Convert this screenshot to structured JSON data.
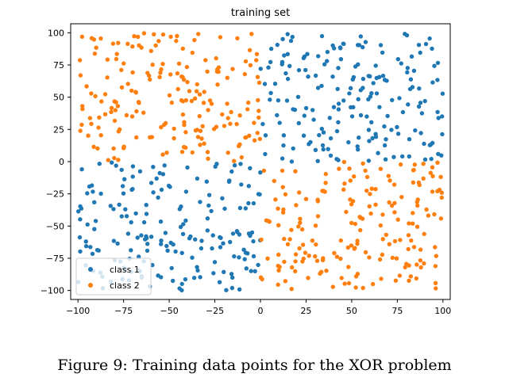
{
  "chart_data": {
    "type": "scatter",
    "title": "training set",
    "xlabel": "",
    "ylabel": "",
    "xlim": [
      -104,
      104
    ],
    "ylim": [
      -107,
      107
    ],
    "xticks": [
      -100,
      -75,
      -50,
      -25,
      0,
      25,
      50,
      75,
      100
    ],
    "yticks": [
      -100,
      -75,
      -50,
      -25,
      0,
      25,
      50,
      75,
      100
    ],
    "grid": false,
    "legend_position": "lower-left",
    "point_count_per_quadrant": 190,
    "series": [
      {
        "name": "class 1",
        "color": "#1f77b4",
        "regions": [
          {
            "x": [
              0,
              100
            ],
            "y": [
              0,
              100
            ]
          },
          {
            "x": [
              -100,
              0
            ],
            "y": [
              -100,
              0
            ]
          }
        ]
      },
      {
        "name": "class 2",
        "color": "#ff7f0e",
        "regions": [
          {
            "x": [
              -100,
              0
            ],
            "y": [
              0,
              100
            ]
          },
          {
            "x": [
              0,
              100
            ],
            "y": [
              -100,
              0
            ]
          }
        ]
      }
    ]
  },
  "caption": "Figure 9: Training data points for the XOR problem"
}
